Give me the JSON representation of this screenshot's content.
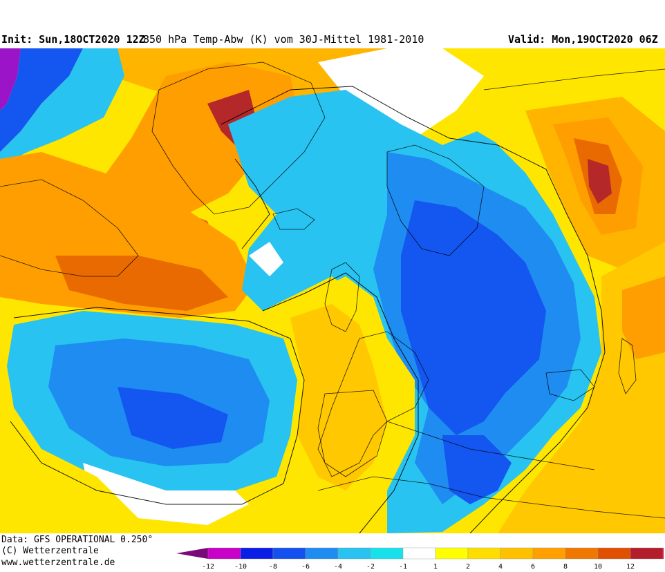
{
  "header": {
    "init": "Init: Sun,18OCT2020 12Z",
    "title": "850 hPa Temp-Abw (K) vom 30J-Mittel 1981-2010",
    "valid": "Valid: Mon,19OCT2020 06Z"
  },
  "footer": {
    "data_source": "Data: GFS OPERATIONAL 0.250°",
    "copyright": "(C) Wetterzentrale",
    "website": "www.wetterzentrale.de"
  },
  "legend": {
    "colors": [
      "#7a0a7a",
      "#c800c8",
      "#0a1ee6",
      "#1450f0",
      "#1e8cf0",
      "#28c3f0",
      "#19e1eb",
      "#ffffff",
      "#ffff00",
      "#ffdd00",
      "#ffc000",
      "#ffa000",
      "#f07800",
      "#e05000",
      "#b41e2a",
      "#d2167a"
    ],
    "labels": [
      "-12",
      "-10",
      "-8",
      "-6",
      "-4",
      "-2",
      "-1",
      "1",
      "2",
      "4",
      "6",
      "8",
      "10",
      "12"
    ]
  },
  "map": {
    "palette": {
      "warm_yellow": "#ffee00",
      "gold": "#ffc800",
      "orange": "#ff9e00",
      "dark_orange": "#e86a00",
      "red": "#b4282a",
      "magenta": "#c8147a",
      "cyan_light": "#19e1eb",
      "cyan": "#28c3f0",
      "blue_mid": "#1e8cf0",
      "blue": "#1456f0",
      "blue_dark": "#0a28e6",
      "purple": "#9b14c8",
      "white": "#ffffff"
    }
  }
}
